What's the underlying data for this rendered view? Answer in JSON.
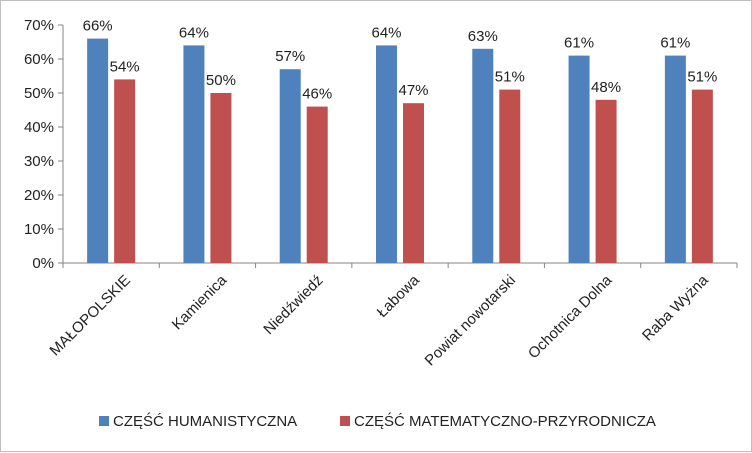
{
  "chart_data": {
    "type": "bar",
    "categories": [
      "MAŁOPOLSKIE",
      "Kamienica",
      "Niedźwiedź",
      "Łabowa",
      "Powiat nowotarski",
      "Ochotnica Dolna",
      "Raba Wyżna"
    ],
    "series": [
      {
        "name": "CZĘŚĆ HUMANISTYCZNA",
        "color": "#4f81bd",
        "values": [
          66,
          64,
          57,
          64,
          63,
          61,
          61
        ],
        "labels": [
          "66%",
          "64%",
          "57%",
          "64%",
          "63%",
          "61%",
          "61%"
        ]
      },
      {
        "name": "CZĘŚĆ MATEMATYCZNO-PRZYRODNICZA",
        "color": "#c0504d",
        "values": [
          54,
          50,
          46,
          47,
          51,
          48,
          51
        ],
        "labels": [
          "54%",
          "50%",
          "46%",
          "47%",
          "51%",
          "48%",
          "51%"
        ]
      }
    ],
    "yticks": [
      "0%",
      "10%",
      "20%",
      "30%",
      "40%",
      "50%",
      "60%",
      "70%"
    ],
    "ylim": [
      0,
      70
    ],
    "grid": false,
    "legend_position": "bottom"
  }
}
